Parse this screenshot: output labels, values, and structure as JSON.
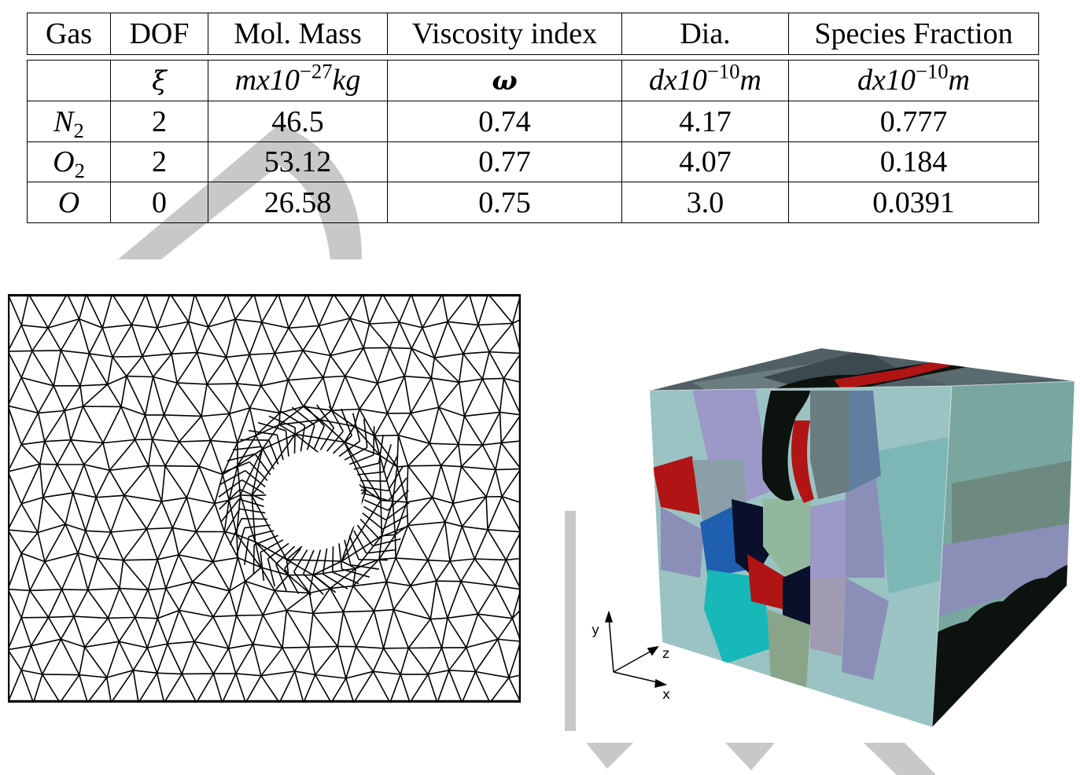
{
  "table": {
    "headers": [
      "Gas",
      "DOF",
      "Mol. Mass",
      "Viscosity index",
      "Dia.",
      "Species Fraction"
    ],
    "units": {
      "gas": "",
      "dof": "ξ",
      "mass_base": "mx10",
      "mass_exp": "−27",
      "mass_unit": "kg",
      "viscosity": "ω",
      "dia_base": "dx10",
      "dia_exp": "−10",
      "dia_unit": "m",
      "frac_base": "dx10",
      "frac_exp": "−10",
      "frac_unit": "m"
    },
    "rows": [
      {
        "gas": "N",
        "gas_sub": "2",
        "dof": "2",
        "mass": "46.5",
        "viscosity": "0.74",
        "dia": "4.17",
        "fraction": "0.777"
      },
      {
        "gas": "O",
        "gas_sub": "2",
        "dof": "2",
        "mass": "53.12",
        "viscosity": "0.77",
        "dia": "4.07",
        "fraction": "0.184"
      },
      {
        "gas": "O",
        "gas_sub": "",
        "dof": "0",
        "mass": "26.58",
        "viscosity": "0.75",
        "dia": "3.0",
        "fraction": "0.0391"
      }
    ]
  },
  "cube_axes": {
    "y": "y",
    "z": "z",
    "x": "x"
  },
  "colors": {
    "watermark": "#c8c8c8",
    "cube_black": "#0c120d",
    "cube_red": "#b01414",
    "cube_teal": "#7cb7b6",
    "cube_cyan": "#16b8b8",
    "cube_lavender": "#8b8fb8"
  }
}
